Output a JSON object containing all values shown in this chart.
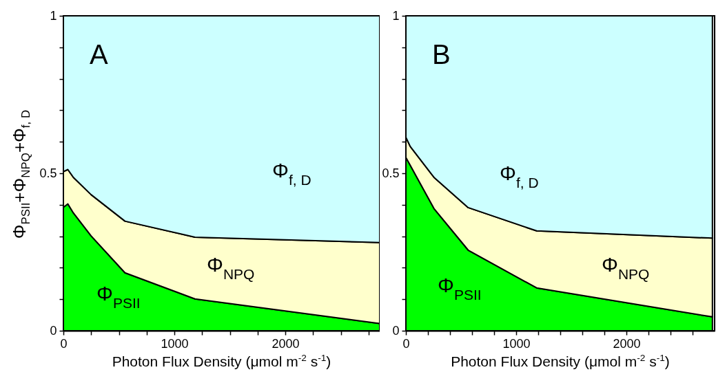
{
  "chart_data": [
    {
      "type": "area",
      "stacked": true,
      "annotations": [
        "A"
      ],
      "xlabel": "Photon Flux Density (μmol m$^{-2}$ s$^{-1}$)",
      "ylabel": "Φ$_{PSII}$+Φ$_{NPQ}$+Φ$_{f, D}$",
      "x": [
        0,
        40,
        90,
        250,
        555,
        1186,
        2850
      ],
      "series": [
        {
          "name": "Φ$_{PSII}$",
          "color": "#00ff00",
          "values": [
            0.392,
            0.403,
            0.374,
            0.301,
            0.184,
            0.101,
            0.023
          ]
        },
        {
          "name": "Φ$_{NPQ}$",
          "color": "#ffffcc",
          "values": [
            0.113,
            0.109,
            0.113,
            0.131,
            0.164,
            0.196,
            0.257
          ]
        },
        {
          "name": "Φ$_{f, D}$",
          "color": "#ccffff",
          "values": [
            0.495,
            0.488,
            0.513,
            0.568,
            0.652,
            0.703,
            0.72
          ]
        }
      ],
      "xlim": [
        0,
        2850
      ],
      "xticks": [
        0,
        {
          "value": 250,
          "label": null
        },
        {
          "value": 500,
          "label": null
        },
        {
          "value": 750,
          "label": null
        },
        1000,
        {
          "value": 1250,
          "label": null
        },
        {
          "value": 1500,
          "label": null
        },
        {
          "value": 1750,
          "label": null
        },
        2000,
        {
          "value": 2250,
          "label": null
        },
        {
          "value": 2500,
          "label": null
        },
        {
          "value": 2750,
          "label": null
        }
      ],
      "ylim": [
        0,
        1
      ],
      "yticks": [
        0,
        {
          "value": 0.1,
          "label": null
        },
        {
          "value": 0.2,
          "label": null
        },
        {
          "value": 0.3,
          "label": null
        },
        {
          "value": 0.4,
          "label": null
        },
        0.5,
        {
          "value": 0.6,
          "label": null
        },
        {
          "value": 0.7,
          "label": null
        },
        {
          "value": 0.8,
          "label": null
        },
        {
          "value": 0.9,
          "label": null
        },
        1
      ]
    },
    {
      "type": "area",
      "stacked": true,
      "annotations": [
        "B"
      ],
      "xlabel": "Photon Flux Density (μmol m$^{-2}$ s$^{-1}$)",
      "x": [
        0,
        40,
        255,
        565,
        1186,
        2780
      ],
      "series": [
        {
          "name": "Φ$_{PSII}$",
          "color": "#00ff00",
          "values": [
            0.55,
            0.525,
            0.388,
            0.256,
            0.136,
            0.044
          ]
        },
        {
          "name": "Φ$_{NPQ}$",
          "color": "#ffffcc",
          "values": [
            0.064,
            0.06,
            0.099,
            0.135,
            0.181,
            0.25
          ]
        },
        {
          "name": "Φ$_{f, D}$",
          "color": "#ccffff",
          "values": [
            0.386,
            0.415,
            0.513,
            0.609,
            0.683,
            0.706
          ]
        }
      ],
      "xlim": [
        0,
        2800
      ],
      "xticks": [
        0,
        {
          "value": 200,
          "label": null
        },
        {
          "value": 400,
          "label": null
        },
        {
          "value": 600,
          "label": null
        },
        {
          "value": 800,
          "label": null
        },
        1000,
        {
          "value": 1200,
          "label": null
        },
        {
          "value": 1400,
          "label": null
        },
        {
          "value": 1600,
          "label": null
        },
        {
          "value": 1800,
          "label": null
        },
        2000,
        {
          "value": 2200,
          "label": null
        },
        {
          "value": 2400,
          "label": null
        },
        {
          "value": 2600,
          "label": null
        }
      ],
      "ylim": [
        0,
        1
      ],
      "yticks": [
        0,
        {
          "value": 0.1,
          "label": null
        },
        {
          "value": 0.2,
          "label": null
        },
        {
          "value": 0.3,
          "label": null
        },
        {
          "value": 0.4,
          "label": null
        },
        0.5,
        {
          "value": 0.6,
          "label": null
        },
        {
          "value": 0.7,
          "label": null
        },
        {
          "value": 0.8,
          "label": null
        },
        {
          "value": 0.9,
          "label": null
        },
        1
      ]
    }
  ]
}
